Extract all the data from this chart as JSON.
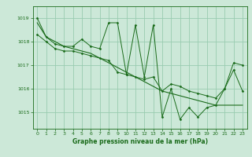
{
  "title": "Graphe pression niveau de la mer (hPa)",
  "bg_color": "#cce8d8",
  "grid_color": "#99ccb0",
  "line_color": "#1a6b1a",
  "xlim": [
    -0.5,
    23.5
  ],
  "ylim": [
    1014.3,
    1019.5
  ],
  "yticks": [
    1015,
    1016,
    1017,
    1018,
    1019
  ],
  "xticks": [
    0,
    1,
    2,
    3,
    4,
    5,
    6,
    7,
    8,
    9,
    10,
    11,
    12,
    13,
    14,
    15,
    16,
    17,
    18,
    19,
    20,
    21,
    22,
    23
  ],
  "series1": [
    1018.8,
    1018.2,
    1018.0,
    1017.8,
    1017.7,
    1017.6,
    1017.5,
    1017.3,
    1017.1,
    1016.9,
    1016.7,
    1016.5,
    1016.3,
    1016.1,
    1015.9,
    1015.8,
    1015.7,
    1015.6,
    1015.5,
    1015.4,
    1015.3,
    1015.3,
    1015.3,
    1015.3
  ],
  "series2": [
    1019.0,
    1018.2,
    1017.9,
    1017.8,
    1017.8,
    1018.1,
    1017.8,
    1017.7,
    1018.8,
    1018.8,
    1016.6,
    1018.7,
    1016.5,
    1018.7,
    1014.8,
    1016.0,
    1014.7,
    1015.2,
    1014.8,
    1015.2,
    1015.3,
    1016.0,
    1016.8,
    1015.9
  ],
  "series3": [
    1018.3,
    1018.0,
    1017.7,
    1017.6,
    1017.6,
    1017.5,
    1017.4,
    1017.3,
    1017.2,
    1016.7,
    1016.6,
    1016.5,
    1016.4,
    1016.5,
    1015.9,
    1016.2,
    1016.1,
    1015.9,
    1015.8,
    1015.7,
    1015.6,
    1016.0,
    1017.1,
    1017.0
  ]
}
